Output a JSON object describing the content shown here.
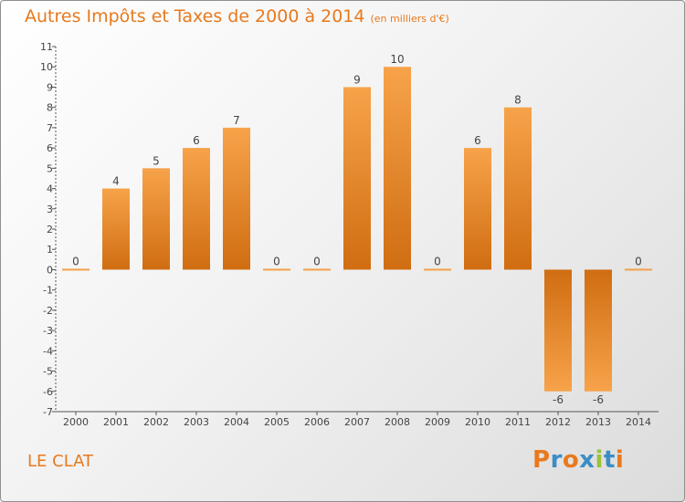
{
  "title": "Autres Impôts et Taxes de 2000 à 2014",
  "unit": "(en milliers d'€)",
  "commune": "LE CLAT",
  "logo": {
    "letters": [
      "P",
      "r",
      "o",
      "x",
      "i",
      "t",
      "i"
    ],
    "colors": [
      "#e8791d",
      "#3c8dc5",
      "#e8791d",
      "#3c8dc5",
      "#9bc23c",
      "#3c8dc5",
      "#e8791d"
    ]
  },
  "colors": {
    "bar_light": "#f7a34a",
    "bar_dark": "#d06d12",
    "accent": "#e8791d"
  },
  "chart_data": {
    "type": "bar",
    "title": "Autres Impôts et Taxes de 2000 à 2014",
    "categories": [
      "2000",
      "2001",
      "2002",
      "2003",
      "2004",
      "2005",
      "2006",
      "2007",
      "2008",
      "2009",
      "2010",
      "2011",
      "2012",
      "2013",
      "2014"
    ],
    "values": [
      0,
      4,
      5,
      6,
      7,
      0,
      0,
      9,
      10,
      0,
      6,
      8,
      -6,
      -6,
      0
    ],
    "ylim": [
      -7,
      11
    ],
    "yticks": [
      "-7",
      "-6",
      "-5",
      "-4",
      "-3",
      "-2",
      "-1",
      "0",
      "1",
      "2",
      "3",
      "4",
      "5",
      "6",
      "7",
      "8",
      "9",
      "10",
      "11"
    ],
    "grid": false,
    "xlabel": "",
    "ylabel": ""
  }
}
